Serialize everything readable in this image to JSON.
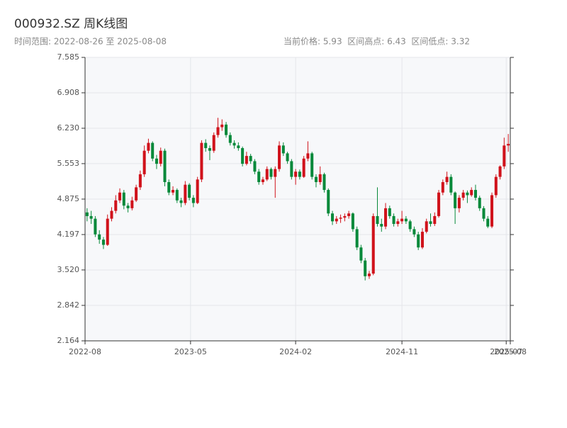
{
  "header": {
    "subtitle": "时间范围: 2022-08-26 至 2025-08-08",
    "stats": "当前价格: 5.93  区间高点: 6.43  区间低点: 3.32"
  },
  "chart_data": {
    "type": "candlestick",
    "title": "000932.SZ 周K线图",
    "up_color": "#d0121b",
    "down_color": "#07893a",
    "grid": true,
    "xlim": [
      0,
      104
    ],
    "xticks": [
      {
        "value": 0,
        "label": "2022-08"
      },
      {
        "value": 25.8,
        "label": "2023-05"
      },
      {
        "value": 51.5,
        "label": "2024-02"
      },
      {
        "value": 77.5,
        "label": "2024-11"
      },
      {
        "value": 103,
        "label": "2025-07"
      },
      {
        "value": 104,
        "label": "2025-08"
      }
    ],
    "ylim": [
      2.164,
      7.585
    ],
    "yticks": [
      {
        "value": 2.164,
        "label": "2.164"
      },
      {
        "value": 2.842,
        "label": "2.842"
      },
      {
        "value": 3.52,
        "label": "3.520"
      },
      {
        "value": 4.197,
        "label": "4.197"
      },
      {
        "value": 4.875,
        "label": "4.875"
      },
      {
        "value": 5.553,
        "label": "5.553"
      },
      {
        "value": 6.23,
        "label": "6.230"
      },
      {
        "value": 6.908,
        "label": "6.908"
      },
      {
        "value": 7.585,
        "label": "7.585"
      }
    ],
    "open": [
      4.62,
      4.55,
      4.5,
      4.2,
      4.1,
      4.0,
      4.5,
      4.65,
      4.85,
      5.0,
      4.75,
      4.7,
      4.85,
      5.1,
      5.35,
      5.8,
      5.95,
      5.65,
      5.55,
      5.8,
      5.2,
      5.0,
      5.05,
      4.85,
      4.8,
      5.15,
      4.9,
      4.8,
      5.25,
      5.95,
      5.85,
      5.8,
      6.1,
      6.25,
      6.3,
      6.1,
      5.95,
      5.9,
      5.85,
      5.55,
      5.7,
      5.6,
      5.4,
      5.2,
      5.25,
      5.45,
      5.3,
      5.45,
      5.9,
      5.75,
      5.6,
      5.3,
      5.4,
      5.3,
      5.65,
      5.75,
      5.3,
      5.2,
      5.35,
      5.05,
      4.6,
      4.45,
      4.5,
      4.52,
      4.55,
      4.6,
      4.3,
      3.95,
      3.7,
      3.4,
      3.45,
      4.55,
      4.4,
      4.35,
      4.7,
      4.55,
      4.4,
      4.45,
      4.5,
      4.45,
      4.3,
      4.2,
      3.95,
      4.25,
      4.45,
      4.4,
      4.55,
      5.0,
      5.2,
      5.3,
      5.0,
      4.7,
      4.9,
      5.0,
      4.95,
      5.05,
      4.9,
      4.7,
      4.5,
      4.35,
      4.95,
      5.3,
      5.5,
      5.9
    ],
    "high": [
      4.7,
      4.65,
      4.55,
      4.28,
      4.15,
      4.58,
      4.72,
      4.95,
      5.08,
      5.05,
      4.8,
      4.92,
      5.15,
      5.42,
      5.9,
      6.03,
      5.98,
      5.72,
      5.86,
      5.84,
      5.25,
      5.12,
      5.08,
      4.9,
      5.22,
      5.18,
      4.95,
      5.3,
      6.0,
      6.02,
      5.9,
      6.15,
      6.43,
      6.4,
      6.35,
      6.15,
      6.0,
      5.96,
      5.88,
      5.78,
      5.74,
      5.64,
      5.45,
      5.3,
      5.5,
      5.48,
      5.5,
      5.98,
      5.96,
      5.78,
      5.64,
      5.45,
      5.44,
      5.7,
      5.98,
      5.78,
      5.35,
      5.5,
      5.38,
      5.08,
      4.65,
      4.55,
      4.58,
      4.6,
      4.65,
      4.62,
      4.35,
      4.0,
      3.75,
      3.5,
      4.6,
      5.1,
      4.5,
      4.8,
      4.75,
      4.6,
      4.5,
      4.65,
      4.55,
      4.48,
      4.35,
      4.25,
      4.32,
      4.5,
      4.6,
      4.62,
      5.05,
      5.25,
      5.4,
      5.35,
      5.02,
      4.95,
      5.05,
      5.04,
      5.1,
      5.15,
      4.94,
      4.74,
      4.55,
      5.0,
      5.35,
      5.52,
      6.05,
      6.12
    ],
    "low": [
      4.45,
      4.4,
      4.15,
      4.02,
      3.92,
      3.98,
      4.45,
      4.6,
      4.8,
      4.68,
      4.62,
      4.66,
      4.82,
      5.05,
      5.3,
      5.75,
      5.6,
      5.45,
      5.5,
      5.12,
      4.95,
      4.95,
      4.8,
      4.72,
      4.76,
      4.85,
      4.72,
      4.78,
      5.2,
      5.78,
      5.62,
      5.76,
      6.05,
      6.18,
      6.05,
      5.9,
      5.84,
      5.8,
      5.5,
      5.52,
      5.55,
      5.35,
      5.15,
      5.15,
      5.22,
      5.25,
      4.9,
      5.4,
      5.7,
      5.55,
      5.25,
      5.15,
      5.25,
      5.28,
      5.6,
      5.25,
      5.1,
      5.15,
      5.0,
      4.55,
      4.38,
      4.4,
      4.42,
      4.45,
      4.5,
      4.25,
      3.9,
      3.65,
      3.32,
      3.35,
      3.42,
      4.35,
      4.25,
      4.3,
      4.5,
      4.35,
      4.35,
      4.4,
      4.4,
      4.25,
      4.15,
      3.9,
      3.92,
      4.22,
      4.35,
      4.36,
      4.52,
      4.95,
      5.15,
      4.95,
      4.4,
      4.62,
      4.85,
      4.8,
      4.92,
      4.85,
      4.65,
      4.45,
      4.32,
      4.32,
      4.9,
      5.25,
      5.45,
      5.78
    ],
    "close": [
      4.55,
      4.5,
      4.2,
      4.1,
      4.0,
      4.5,
      4.65,
      4.85,
      5.0,
      4.75,
      4.7,
      4.85,
      5.1,
      5.35,
      5.8,
      5.95,
      5.65,
      5.55,
      5.8,
      5.2,
      5.0,
      5.05,
      4.85,
      4.8,
      5.15,
      4.9,
      4.8,
      5.25,
      5.95,
      5.85,
      5.8,
      6.1,
      6.25,
      6.3,
      6.1,
      5.95,
      5.9,
      5.85,
      5.55,
      5.7,
      5.6,
      5.4,
      5.2,
      5.25,
      5.45,
      5.3,
      5.45,
      5.9,
      5.75,
      5.6,
      5.3,
      5.4,
      5.3,
      5.65,
      5.75,
      5.3,
      5.2,
      5.35,
      5.05,
      4.6,
      4.45,
      4.5,
      4.52,
      4.55,
      4.6,
      4.3,
      3.95,
      3.7,
      3.4,
      3.45,
      4.55,
      4.4,
      4.35,
      4.7,
      4.55,
      4.4,
      4.45,
      4.5,
      4.45,
      4.3,
      4.2,
      3.95,
      4.25,
      4.45,
      4.4,
      4.55,
      5.0,
      5.2,
      5.3,
      5.0,
      4.7,
      4.9,
      5.0,
      4.95,
      5.05,
      4.9,
      4.7,
      4.5,
      4.35,
      4.95,
      5.3,
      5.5,
      5.9,
      5.93
    ]
  }
}
